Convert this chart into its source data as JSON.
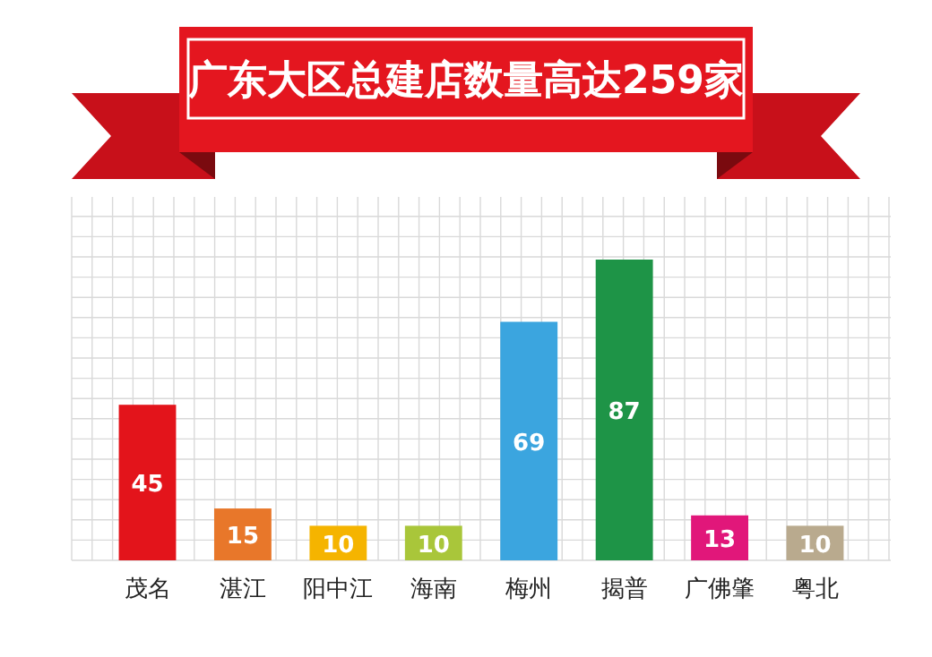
{
  "chart_data": {
    "type": "bar",
    "title": "广东大区总建店数量高达259家",
    "categories": [
      "茂名",
      "湛江",
      "阳中江",
      "海南",
      "梅州",
      "揭普",
      "广佛肇",
      "粤北"
    ],
    "values": [
      45,
      15,
      10,
      10,
      69,
      87,
      13,
      10
    ],
    "colors": [
      "#e3141b",
      "#e8772a",
      "#f5b400",
      "#a9c63a",
      "#3ba5df",
      "#1e9447",
      "#e1177a",
      "#b9aa8e"
    ],
    "data_labels": true,
    "grid": true
  }
}
